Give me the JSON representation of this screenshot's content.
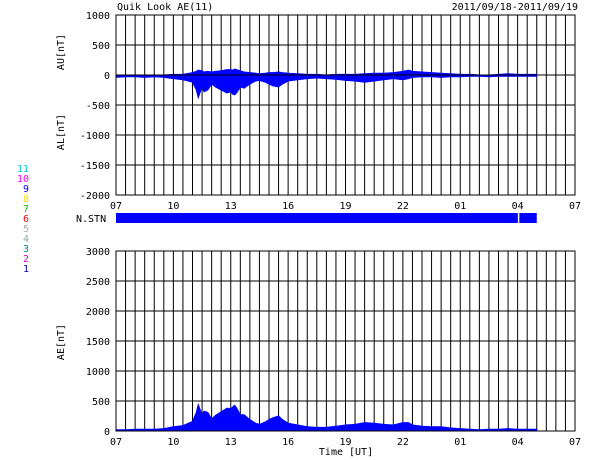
{
  "header": {
    "title": "Quik Look AE(11)",
    "date_range": "2011/09/18-2011/09/19"
  },
  "colors": {
    "fill": "#0000ff",
    "axis": "#000000",
    "background": "#ffffff"
  },
  "station_legend": [
    {
      "label": "11",
      "color": "#00cccc"
    },
    {
      "label": "10",
      "color": "#ff00ff"
    },
    {
      "label": "9",
      "color": "#0000ff"
    },
    {
      "label": "8",
      "color": "#ffdd00"
    },
    {
      "label": "7",
      "color": "#00cc00"
    },
    {
      "label": "6",
      "color": "#ff0000"
    },
    {
      "label": "5",
      "color": "#aaaaaa"
    },
    {
      "label": "4",
      "color": "#88aaaa"
    },
    {
      "label": "3",
      "color": "#008888"
    },
    {
      "label": "2",
      "color": "#cc00cc"
    },
    {
      "label": "1",
      "color": "#0000aa"
    }
  ],
  "nstn": {
    "label": "N.STN",
    "bar_end_hour": 22,
    "gap_hour": 21.05
  },
  "chart_data": [
    {
      "type": "area",
      "name": "AU/AL",
      "ylabel_top": "AU[nT]",
      "ylabel_bottom": "AL[nT]",
      "xlim": [
        0,
        24
      ],
      "ylim": [
        -2000,
        1000
      ],
      "yticks": [
        1000,
        500,
        0,
        -500,
        -1000,
        -1500,
        -2000
      ],
      "xticks": [
        {
          "pos": 0,
          "label": "07"
        },
        {
          "pos": 3,
          "label": "10"
        },
        {
          "pos": 6,
          "label": "13"
        },
        {
          "pos": 9,
          "label": "16"
        },
        {
          "pos": 12,
          "label": "19"
        },
        {
          "pos": 15,
          "label": "22"
        },
        {
          "pos": 18,
          "label": "01"
        },
        {
          "pos": 21,
          "label": "04"
        },
        {
          "pos": 24,
          "label": "07"
        }
      ],
      "grid": true,
      "x": [
        0,
        0.5,
        1,
        1.5,
        2,
        2.5,
        3,
        3.5,
        4,
        4.2,
        4.3,
        4.5,
        4.6,
        4.8,
        5,
        5.2,
        5.5,
        5.8,
        6,
        6.1,
        6.2,
        6.3,
        6.5,
        6.7,
        7,
        7.3,
        7.5,
        7.8,
        8,
        8.2,
        8.5,
        8.7,
        9,
        9.5,
        10,
        10.5,
        11,
        11.5,
        12,
        12.5,
        13,
        13.5,
        14,
        14.5,
        15,
        15.3,
        15.5,
        16,
        16.5,
        17,
        17.5,
        18,
        18.5,
        19,
        19.5,
        20,
        20.5,
        21,
        21.5,
        22
      ],
      "au": [
        -30,
        -20,
        -10,
        -10,
        0,
        0,
        10,
        10,
        40,
        60,
        80,
        70,
        50,
        60,
        50,
        60,
        70,
        90,
        90,
        80,
        100,
        90,
        70,
        50,
        40,
        30,
        20,
        30,
        40,
        40,
        50,
        40,
        30,
        20,
        10,
        10,
        0,
        10,
        10,
        10,
        20,
        30,
        30,
        40,
        60,
        80,
        60,
        50,
        40,
        30,
        20,
        10,
        10,
        0,
        0,
        10,
        20,
        10,
        10,
        10
      ],
      "al": [
        -40,
        -30,
        -30,
        -40,
        -30,
        -40,
        -60,
        -80,
        -120,
        -250,
        -380,
        -200,
        -280,
        -250,
        -150,
        -200,
        -250,
        -300,
        -280,
        -320,
        -330,
        -300,
        -200,
        -220,
        -150,
        -100,
        -90,
        -120,
        -150,
        -180,
        -200,
        -150,
        -100,
        -80,
        -60,
        -50,
        -60,
        -70,
        -90,
        -100,
        -120,
        -100,
        -80,
        -60,
        -80,
        -60,
        -40,
        -30,
        -30,
        -40,
        -30,
        -30,
        -20,
        -20,
        -30,
        -20,
        -20,
        -20,
        -20,
        -20
      ]
    },
    {
      "type": "area",
      "name": "AE",
      "ylabel": "AE[nT]",
      "xlabel": "Time [UT]",
      "xlim": [
        0,
        24
      ],
      "ylim": [
        0,
        3000
      ],
      "yticks": [
        3000,
        2500,
        2000,
        1500,
        1000,
        500,
        0
      ],
      "xticks": [
        {
          "pos": 0,
          "label": "07"
        },
        {
          "pos": 3,
          "label": "10"
        },
        {
          "pos": 6,
          "label": "13"
        },
        {
          "pos": 9,
          "label": "16"
        },
        {
          "pos": 12,
          "label": "19"
        },
        {
          "pos": 15,
          "label": "22"
        },
        {
          "pos": 18,
          "label": "01"
        },
        {
          "pos": 21,
          "label": "04"
        },
        {
          "pos": 24,
          "label": "07"
        }
      ],
      "grid": true,
      "x": [
        0,
        0.5,
        1,
        1.5,
        2,
        2.5,
        3,
        3.5,
        4,
        4.2,
        4.3,
        4.5,
        4.6,
        4.8,
        5,
        5.2,
        5.5,
        5.8,
        6,
        6.1,
        6.2,
        6.3,
        6.5,
        6.7,
        7,
        7.3,
        7.5,
        7.8,
        8,
        8.2,
        8.5,
        8.7,
        9,
        9.5,
        10,
        10.5,
        11,
        11.5,
        12,
        12.5,
        13,
        13.5,
        14,
        14.5,
        15,
        15.3,
        15.5,
        16,
        16.5,
        17,
        17.5,
        18,
        18.5,
        19,
        19.5,
        20,
        20.5,
        21,
        21.5,
        22
      ],
      "values": [
        20,
        20,
        30,
        30,
        30,
        40,
        70,
        90,
        160,
        310,
        440,
        270,
        330,
        310,
        200,
        260,
        320,
        380,
        370,
        400,
        430,
        390,
        270,
        270,
        190,
        130,
        110,
        150,
        190,
        220,
        250,
        190,
        130,
        100,
        70,
        60,
        60,
        80,
        100,
        110,
        140,
        130,
        110,
        100,
        140,
        140,
        100,
        80,
        70,
        70,
        50,
        40,
        30,
        20,
        30,
        30,
        40,
        30,
        30,
        30
      ]
    }
  ]
}
